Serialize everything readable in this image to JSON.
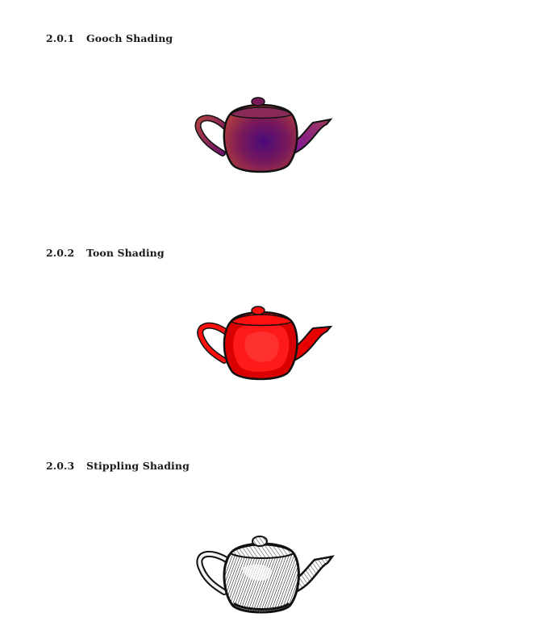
{
  "sections": [
    {
      "number": "2.0.1",
      "title": "Gooch Shading",
      "style": "gooch",
      "colors": {
        "cool": "#4a0a78",
        "warm": "#b03a3a",
        "mid": "#7a1a5a"
      }
    },
    {
      "number": "2.0.2",
      "title": "Toon Shading",
      "style": "toon",
      "colors": {
        "base": "#ff1010",
        "shade": "#d80000",
        "highlight": "#ff3030"
      }
    },
    {
      "number": "2.0.3",
      "title": "Stippling Shading",
      "style": "stipple",
      "colors": {
        "ink": "#111111",
        "paper": "#ffffff"
      }
    }
  ]
}
